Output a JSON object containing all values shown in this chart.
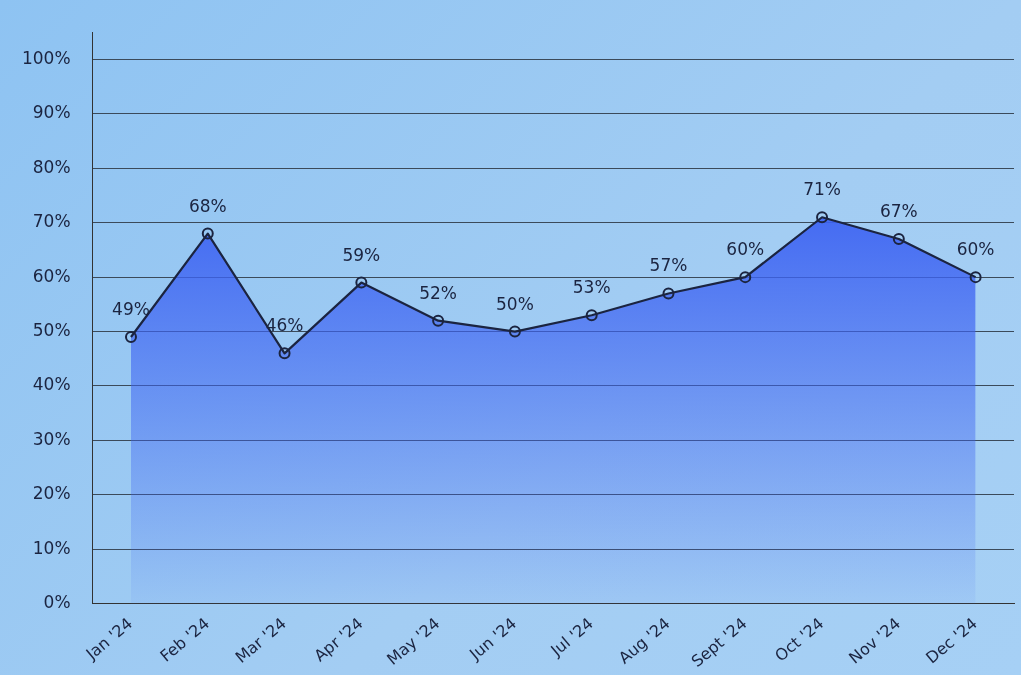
{
  "chart_data": {
    "type": "area",
    "categories": [
      "Jan '24",
      "Feb '24",
      "Mar '24",
      "Apr '24",
      "May '24",
      "Jun '24",
      "Jul '24",
      "Aug '24",
      "Sept '24",
      "Oct '24",
      "Nov '24",
      "Dec '24"
    ],
    "series": [
      {
        "color": "#3d63f2",
        "values": [
          49,
          68,
          46,
          59,
          52,
          50,
          53,
          57,
          60,
          71,
          67,
          60
        ],
        "value_labels": [
          "49%",
          "68%",
          "46%",
          "59%",
          "52%",
          "50%",
          "53%",
          "57%",
          "60%",
          "71%",
          "67%",
          "60%"
        ]
      }
    ],
    "ylim": [
      0,
      105
    ],
    "yticks": [
      {
        "value": 0,
        "label": "0%"
      },
      {
        "value": 10,
        "label": "10%"
      },
      {
        "value": 20,
        "label": "20%"
      },
      {
        "value": 30,
        "label": "30%"
      },
      {
        "value": 40,
        "label": "40%"
      },
      {
        "value": 50,
        "label": "50%"
      },
      {
        "value": 60,
        "label": "60%"
      },
      {
        "value": 70,
        "label": "70%"
      },
      {
        "value": 80,
        "label": "80%"
      },
      {
        "value": 90,
        "label": "90%"
      },
      {
        "value": 100,
        "label": "100%"
      }
    ],
    "grid": "y",
    "legend": false,
    "marker": "circle",
    "line_style": "solid"
  }
}
